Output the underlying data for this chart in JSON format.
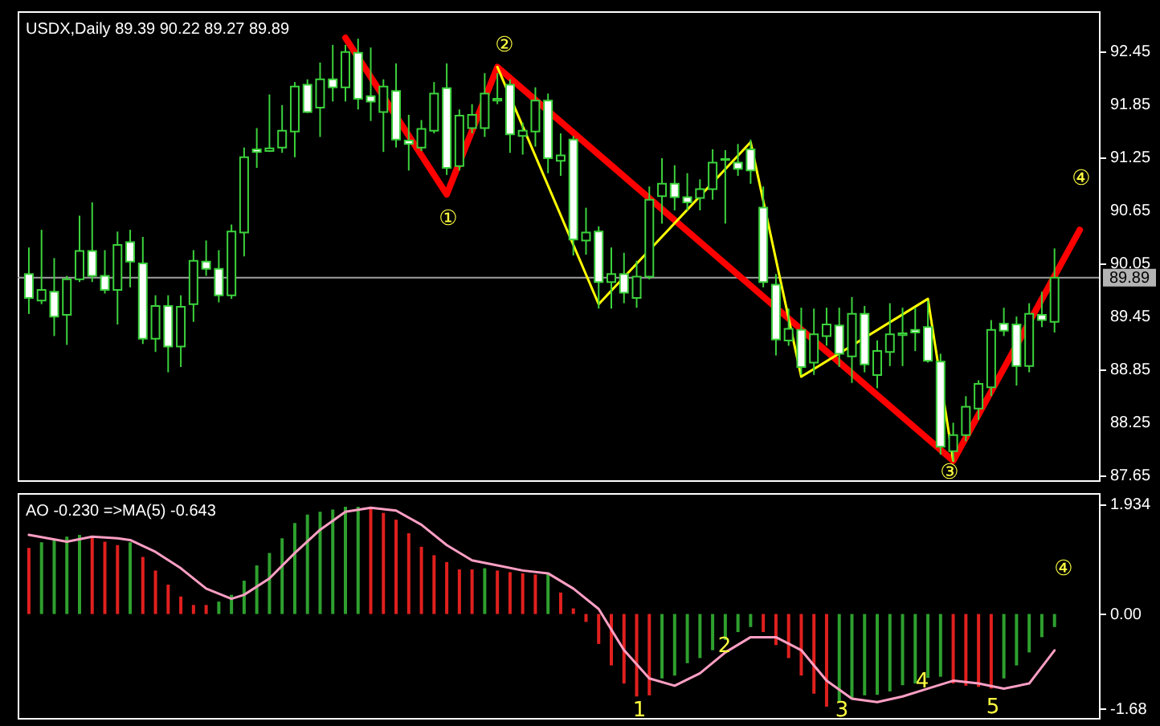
{
  "chart_data": [
    {
      "type": "candlestick",
      "title": "USDX,Daily  89.39 90.22 89.27 89.89",
      "color": "#3cd23c",
      "categories": [
        null,
        null,
        null,
        null,
        null,
        null,
        null,
        null,
        null,
        null,
        null,
        null,
        null,
        null,
        null,
        null,
        null,
        null,
        null,
        null,
        null,
        null,
        null,
        null,
        null,
        null,
        null,
        null,
        null,
        null,
        null,
        null,
        null,
        null,
        null,
        null,
        null,
        null,
        null,
        null,
        null,
        null,
        null,
        null,
        null,
        null,
        null,
        null,
        null,
        null,
        null,
        null,
        null,
        null,
        null,
        null,
        null,
        null,
        null,
        null,
        null,
        null,
        null,
        null,
        null,
        null,
        null,
        null,
        null,
        null,
        null,
        null,
        null,
        null,
        null,
        null,
        null,
        null,
        null,
        null,
        null,
        null,
        null,
        null
      ],
      "ohlc": [
        [
          89.93,
          90.23,
          89.48,
          89.66
        ],
        [
          89.63,
          90.43,
          89.59,
          89.75
        ],
        [
          89.73,
          90.11,
          89.23,
          89.45
        ],
        [
          89.47,
          89.91,
          89.13,
          89.87
        ],
        [
          89.87,
          90.59,
          89.84,
          90.19
        ],
        [
          90.19,
          90.74,
          89.84,
          89.91
        ],
        [
          89.91,
          90.2,
          89.71,
          89.75
        ],
        [
          89.75,
          90.41,
          89.36,
          90.26
        ],
        [
          90.29,
          90.43,
          89.78,
          90.07
        ],
        [
          90.05,
          90.35,
          89.14,
          89.2
        ],
        [
          89.2,
          89.69,
          89.05,
          89.57
        ],
        [
          89.57,
          89.69,
          88.82,
          89.11
        ],
        [
          89.11,
          89.69,
          88.88,
          89.56
        ],
        [
          89.59,
          90.2,
          89.39,
          90.08
        ],
        [
          90.07,
          90.31,
          89.91,
          89.99
        ],
        [
          89.99,
          90.2,
          89.61,
          89.69
        ],
        [
          89.69,
          90.49,
          89.65,
          90.41
        ],
        [
          90.4,
          91.36,
          90.13,
          91.25
        ],
        [
          91.34,
          91.58,
          91.13,
          91.31
        ],
        [
          91.32,
          91.96,
          91.31,
          91.35
        ],
        [
          91.36,
          91.84,
          91.3,
          91.55
        ],
        [
          91.54,
          92.1,
          91.25,
          92.05
        ],
        [
          92.07,
          92.13,
          91.75,
          91.76
        ],
        [
          91.81,
          92.32,
          91.48,
          92.13
        ],
        [
          92.13,
          92.52,
          91.88,
          92.04
        ],
        [
          92.04,
          92.52,
          91.88,
          92.44
        ],
        [
          92.43,
          92.59,
          91.79,
          91.91
        ],
        [
          91.94,
          92.49,
          91.66,
          91.88
        ],
        [
          91.76,
          92.13,
          91.31,
          92.05
        ],
        [
          92,
          92.31,
          91.36,
          91.45
        ],
        [
          91.44,
          91.73,
          91.1,
          91.4
        ],
        [
          91.36,
          91.67,
          91.32,
          91.57
        ],
        [
          91.55,
          92.1,
          91.52,
          91.97
        ],
        [
          92.03,
          92.31,
          91.05,
          91.13
        ],
        [
          91.15,
          91.79,
          91.1,
          91.72
        ],
        [
          91.58,
          91.85,
          91.52,
          91.73
        ],
        [
          91.58,
          92.2,
          91.48,
          91.97
        ],
        [
          91.89,
          92.2,
          91.85,
          91.91
        ],
        [
          92.07,
          92.13,
          91.3,
          91.51
        ],
        [
          91.49,
          91.64,
          91.28,
          91.55
        ],
        [
          91.54,
          92.04,
          91.37,
          91.89
        ],
        [
          91.89,
          91.97,
          91.07,
          91.24
        ],
        [
          91.21,
          91.52,
          91.04,
          91.27
        ],
        [
          91.45,
          91.49,
          90.14,
          90.32
        ],
        [
          90.31,
          90.68,
          90.15,
          90.4
        ],
        [
          90.41,
          90.47,
          89.54,
          89.84
        ],
        [
          89.84,
          90.23,
          89.54,
          89.93
        ],
        [
          89.93,
          90.17,
          89.6,
          89.72
        ],
        [
          89.66,
          90.08,
          89.55,
          89.9
        ],
        [
          89.9,
          90.92,
          89.87,
          90.77
        ],
        [
          90.81,
          91.24,
          90.5,
          90.95
        ],
        [
          90.95,
          91.16,
          90.65,
          90.8
        ],
        [
          90.8,
          91.07,
          90.65,
          90.74
        ],
        [
          90.79,
          91,
          90.65,
          90.89
        ],
        [
          90.89,
          91.34,
          90.77,
          91.19
        ],
        [
          91.22,
          91.33,
          90.5,
          91.23
        ],
        [
          91.19,
          91.4,
          91.04,
          91.12
        ],
        [
          91.34,
          91.45,
          90.95,
          91.1
        ],
        [
          90.68,
          90.92,
          89.78,
          89.84
        ],
        [
          89.81,
          89.93,
          89.01,
          89.19
        ],
        [
          89.18,
          89.54,
          89.12,
          89.31
        ],
        [
          89.3,
          89.55,
          88.79,
          88.88
        ],
        [
          88.93,
          89.54,
          88.79,
          89.25
        ],
        [
          89.23,
          89.55,
          89.12,
          89.36
        ],
        [
          89.35,
          89.55,
          88.88,
          89.03
        ],
        [
          89,
          89.67,
          88.7,
          89.48
        ],
        [
          89.48,
          89.57,
          88.82,
          88.91
        ],
        [
          88.79,
          89.18,
          88.64,
          89.06
        ],
        [
          89.05,
          89.6,
          88.89,
          89.25
        ],
        [
          89.24,
          89.55,
          88.89,
          89.26
        ],
        [
          89.3,
          89.55,
          89.06,
          89.27
        ],
        [
          89.33,
          89.63,
          88.93,
          88.95
        ],
        [
          88.94,
          89.03,
          87.89,
          87.98
        ],
        [
          87.93,
          88.25,
          87.81,
          88.11
        ],
        [
          88.11,
          88.55,
          88.04,
          88.43
        ],
        [
          88.41,
          88.73,
          88.28,
          88.69
        ],
        [
          88.65,
          89.41,
          88.55,
          89.3
        ],
        [
          89.37,
          89.55,
          89.23,
          89.29
        ],
        [
          89.36,
          89.45,
          88.67,
          88.89
        ],
        [
          88.89,
          89.6,
          88.82,
          89.48
        ],
        [
          89.47,
          89.73,
          89.33,
          89.41
        ],
        [
          89.39,
          90.22,
          89.27,
          89.89
        ],
        null,
        null
      ],
      "series": [
        {
          "type": "line",
          "color": "#ff0000",
          "values": [
            null,
            null,
            null,
            null,
            null,
            null,
            null,
            null,
            null,
            null,
            null,
            null,
            null,
            null,
            null,
            null,
            null,
            null,
            null,
            null,
            null,
            null,
            null,
            null,
            null,
            92.6,
            null,
            null,
            null,
            null,
            null,
            null,
            null,
            90.83,
            null,
            null,
            null,
            92.27,
            null,
            null,
            null,
            null,
            null,
            null,
            null,
            null,
            null,
            null,
            null,
            null,
            null,
            null,
            null,
            null,
            null,
            null,
            null,
            null,
            null,
            null,
            null,
            null,
            null,
            null,
            null,
            null,
            null,
            null,
            null,
            null,
            null,
            null,
            null,
            87.82,
            null,
            null,
            null,
            null,
            null,
            null,
            null,
            null,
            null,
            90.43
          ]
        },
        {
          "type": "line",
          "color": "#ffff00",
          "values": [
            null,
            null,
            null,
            null,
            null,
            null,
            null,
            null,
            null,
            null,
            null,
            null,
            null,
            null,
            null,
            null,
            null,
            null,
            null,
            null,
            null,
            null,
            null,
            null,
            null,
            null,
            null,
            null,
            null,
            null,
            null,
            null,
            null,
            null,
            null,
            null,
            null,
            92.27,
            null,
            null,
            null,
            null,
            null,
            null,
            null,
            89.59,
            null,
            null,
            null,
            null,
            null,
            null,
            null,
            null,
            null,
            null,
            null,
            91.42,
            null,
            null,
            null,
            88.77,
            null,
            null,
            null,
            null,
            null,
            null,
            null,
            null,
            null,
            89.65,
            null,
            87.82,
            null,
            null,
            null,
            null,
            null,
            null,
            null,
            null,
            null,
            null
          ]
        }
      ],
      "ylim": [
        87.6,
        92.9
      ],
      "yticks": [
        87.65,
        88.25,
        88.85,
        89.45,
        90.05,
        90.65,
        91.25,
        91.85,
        92.45
      ],
      "ref_lines": [
        {
          "axis": "y",
          "value": 89.89,
          "label": "89.89",
          "color": "#a0a0a0"
        }
      ],
      "annotations": [
        "①",
        "②",
        "③",
        "④"
      ]
    },
    {
      "type": "bar",
      "title": "AO -0.230  =>MA(5) -0.643",
      "categories": [
        null,
        null,
        null,
        null,
        null,
        null,
        null,
        null,
        null,
        null,
        null,
        null,
        null,
        null,
        null,
        null,
        null,
        null,
        null,
        null,
        null,
        null,
        null,
        null,
        null,
        null,
        null,
        null,
        null,
        null,
        null,
        null,
        null,
        null,
        null,
        null,
        null,
        null,
        null,
        null,
        null,
        null,
        null,
        null,
        null,
        null,
        null,
        null,
        null,
        null,
        null,
        null,
        null,
        null,
        null,
        null,
        null,
        null,
        null,
        null,
        null,
        null,
        null,
        null,
        null,
        null,
        null,
        null,
        null,
        null,
        null,
        null,
        null,
        null,
        null,
        null,
        null,
        null,
        null,
        null,
        null,
        null,
        null,
        null
      ],
      "series": [
        {
          "type": "bar",
          "values": [
            1.17,
            1.27,
            1.31,
            1.37,
            1.4,
            1.36,
            1.28,
            1.22,
            1.27,
            1.01,
            0.77,
            0.52,
            0.31,
            0.16,
            0.16,
            0.22,
            0.34,
            0.59,
            0.86,
            1.08,
            1.34,
            1.61,
            1.76,
            1.81,
            1.85,
            1.9,
            1.9,
            1.88,
            1.79,
            1.67,
            1.43,
            1.19,
            1.04,
            0.92,
            0.79,
            0.79,
            0.81,
            0.77,
            0.74,
            0.72,
            0.7,
            0.71,
            0.38,
            0.1,
            -0.14,
            -0.53,
            -0.91,
            -1.23,
            -1.46,
            -1.44,
            -1.14,
            -1.09,
            -0.87,
            -0.78,
            -0.64,
            -0.46,
            -0.32,
            -0.23,
            -0.32,
            -0.55,
            -0.78,
            -1.09,
            -1.41,
            -1.64,
            -1.55,
            -1.5,
            -1.44,
            -1.43,
            -1.37,
            -1.26,
            -1.23,
            -1.13,
            -1.11,
            -1.23,
            -1.27,
            -1.29,
            -1.32,
            -1.14,
            -0.91,
            -0.68,
            -0.41,
            -0.23,
            null,
            null
          ],
          "colors": [
            "#e0201e",
            "#2ea02e",
            "#2ea02e",
            "#2ea02e",
            "#2ea02e",
            "#e0201e",
            "#e0201e",
            "#e0201e",
            "#2ea02e",
            "#e0201e",
            "#e0201e",
            "#e0201e",
            "#e0201e",
            "#e0201e",
            "#e0201e",
            "#2ea02e",
            "#2ea02e",
            "#2ea02e",
            "#2ea02e",
            "#2ea02e",
            "#2ea02e",
            "#2ea02e",
            "#2ea02e",
            "#2ea02e",
            "#2ea02e",
            "#2ea02e",
            "#2ea02e",
            "#e0201e",
            "#e0201e",
            "#e0201e",
            "#e0201e",
            "#e0201e",
            "#e0201e",
            "#e0201e",
            "#e0201e",
            "#e0201e",
            "#2ea02e",
            "#e0201e",
            "#e0201e",
            "#e0201e",
            "#e0201e",
            "#2ea02e",
            "#e0201e",
            "#e0201e",
            "#e0201e",
            "#e0201e",
            "#e0201e",
            "#e0201e",
            "#e0201e",
            "#e0201e",
            "#2ea02e",
            "#2ea02e",
            "#2ea02e",
            "#2ea02e",
            "#2ea02e",
            "#2ea02e",
            "#2ea02e",
            "#2ea02e",
            "#e0201e",
            "#e0201e",
            "#e0201e",
            "#e0201e",
            "#e0201e",
            "#e0201e",
            "#2ea02e",
            "#2ea02e",
            "#2ea02e",
            "#2ea02e",
            "#2ea02e",
            "#2ea02e",
            "#2ea02e",
            "#2ea02e",
            "#2ea02e",
            "#e0201e",
            "#e0201e",
            "#e0201e",
            "#e0201e",
            "#2ea02e",
            "#2ea02e",
            "#2ea02e",
            "#2ea02e",
            "#2ea02e",
            null,
            null
          ]
        },
        {
          "type": "line",
          "color": "#ff9fc4",
          "values": [
            1.4,
            null,
            null,
            1.28,
            null,
            1.37,
            null,
            1.34,
            1.31,
            null,
            1.1,
            null,
            0.81,
            null,
            0.45,
            null,
            0.27,
            0.34,
            null,
            0.63,
            null,
            1.08,
            null,
            1.49,
            null,
            1.81,
            null,
            1.88,
            null,
            1.83,
            null,
            1.58,
            null,
            1.22,
            null,
            0.95,
            null,
            0.86,
            null,
            0.77,
            null,
            0.72,
            null,
            0.45,
            null,
            0.09,
            null,
            -0.64,
            null,
            -1.14,
            null,
            -1.27,
            null,
            -1.05,
            null,
            -0.68,
            null,
            -0.41,
            null,
            -0.41,
            null,
            -0.64,
            null,
            -1.18,
            null,
            -1.5,
            null,
            -1.56,
            null,
            -1.46,
            null,
            -1.32,
            null,
            -1.18,
            null,
            -1.23,
            null,
            -1.32,
            null,
            -1.23,
            null,
            -0.643,
            null,
            null
          ]
        }
      ],
      "ylim": [
        -1.84,
        2.14
      ],
      "yticks": [
        1.934,
        {
          "value": 0,
          "label": "0.00"
        },
        -1.68
      ],
      "annotations": [
        "④",
        "1",
        "2",
        "3",
        "4",
        "5"
      ]
    }
  ]
}
